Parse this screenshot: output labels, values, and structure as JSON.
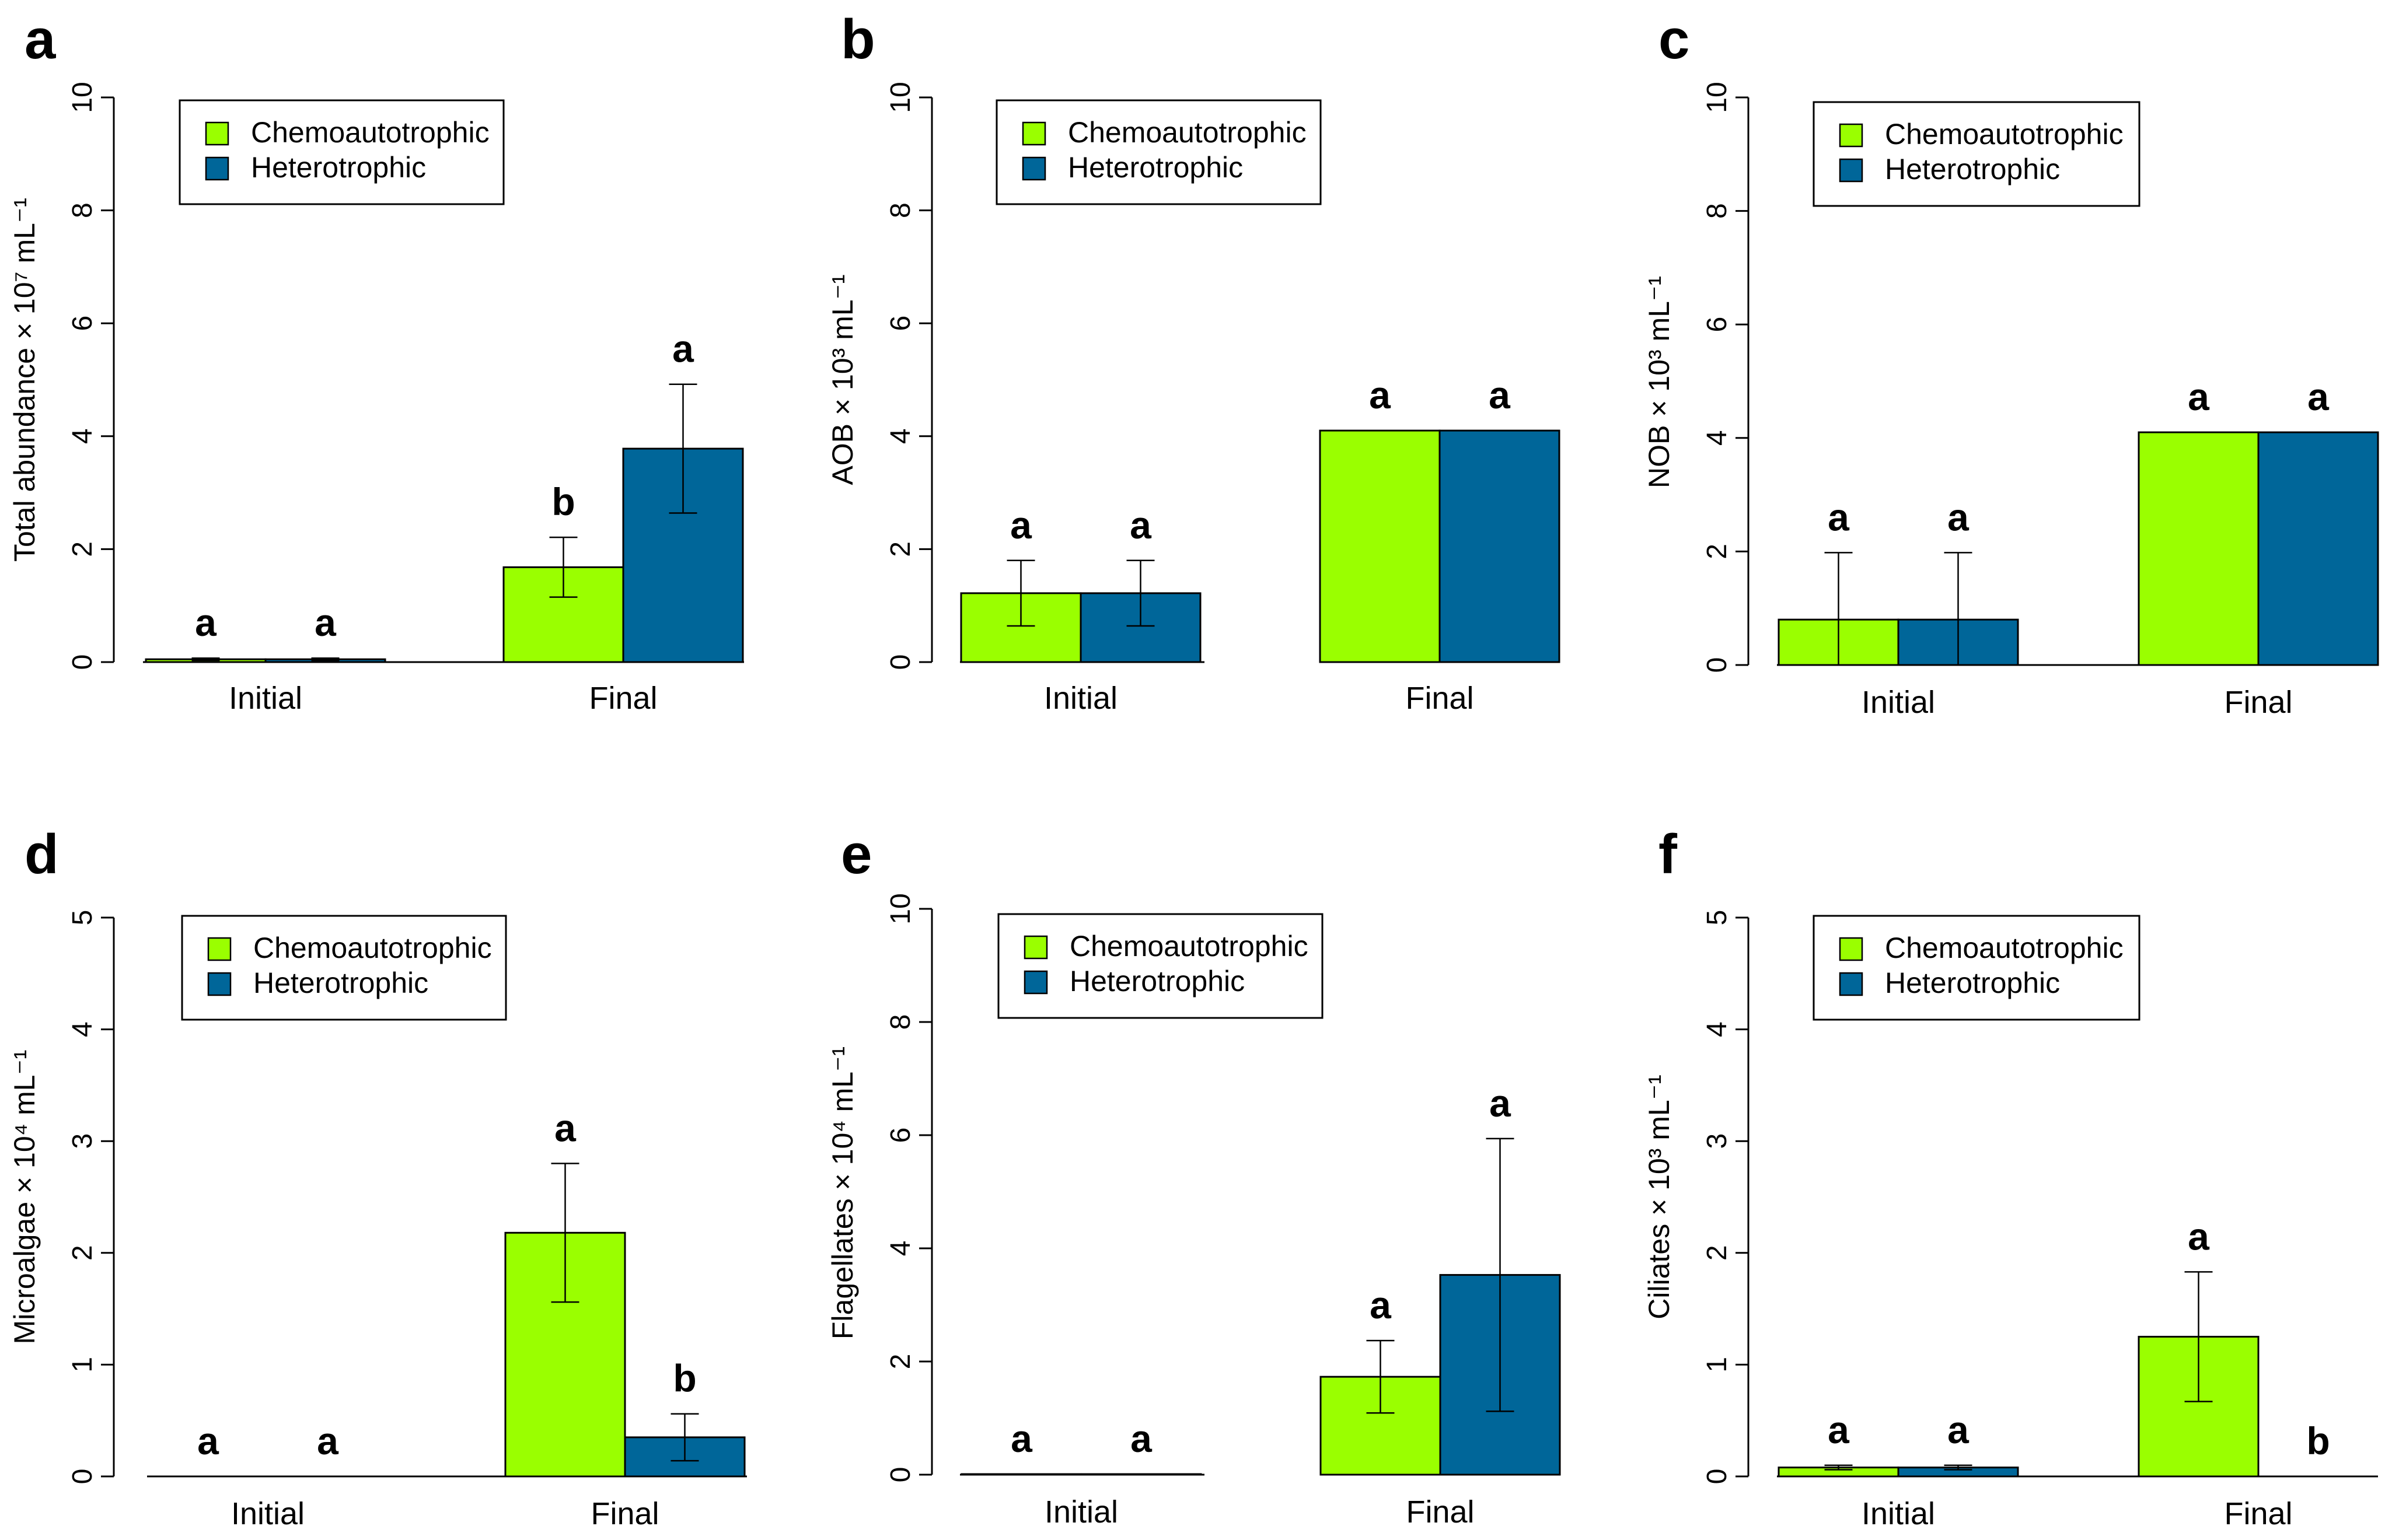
{
  "colors": {
    "chemoautotrophic": "#9aff00",
    "heterotrophic": "#006699"
  },
  "chart_data": [
    {
      "panel": "a",
      "type": "bar",
      "ylabel": "Total abundance × 10⁷ mL⁻¹",
      "ylim": [
        0,
        10
      ],
      "yticks": [
        "0",
        "2",
        "4",
        "6",
        "8",
        "10"
      ],
      "categories": [
        "Initial",
        "Final"
      ],
      "legend": [
        "Chemoautotrophic",
        "Heterotrophic"
      ],
      "series": [
        {
          "name": "Chemoautotrophic",
          "values": [
            0.05,
            1.68
          ],
          "errors": [
            0.02,
            0.53
          ],
          "letters": [
            "a",
            "b"
          ]
        },
        {
          "name": "Heterotrophic",
          "values": [
            0.05,
            3.78
          ],
          "errors": [
            0.02,
            1.14
          ],
          "letters": [
            "a",
            "a"
          ]
        }
      ]
    },
    {
      "panel": "b",
      "type": "bar",
      "ylabel": "AOB × 10³ mL⁻¹",
      "ylim": [
        0,
        10
      ],
      "yticks": [
        "0",
        "2",
        "4",
        "6",
        "8",
        "10"
      ],
      "categories": [
        "Initial",
        "Final"
      ],
      "legend": [
        "Chemoautotrophic",
        "Heterotrophic"
      ],
      "series": [
        {
          "name": "Chemoautotrophic",
          "values": [
            1.22,
            4.1
          ],
          "errors": [
            0.58,
            0
          ],
          "letters": [
            "a",
            "a"
          ]
        },
        {
          "name": "Heterotrophic",
          "values": [
            1.22,
            4.1
          ],
          "errors": [
            0.58,
            0
          ],
          "letters": [
            "a",
            "a"
          ]
        }
      ]
    },
    {
      "panel": "c",
      "type": "bar",
      "ylabel": "NOB × 10³ mL⁻¹",
      "ylim": [
        0,
        10
      ],
      "yticks": [
        "0",
        "2",
        "4",
        "6",
        "8",
        "10"
      ],
      "categories": [
        "Initial",
        "Final"
      ],
      "legend": [
        "Chemoautotrophic",
        "Heterotrophic"
      ],
      "series": [
        {
          "name": "Chemoautotrophic",
          "values": [
            0.8,
            4.1
          ],
          "errors": [
            1.18,
            0
          ],
          "letters": [
            "a",
            "a"
          ]
        },
        {
          "name": "Heterotrophic",
          "values": [
            0.8,
            4.1
          ],
          "errors": [
            1.18,
            0
          ],
          "letters": [
            "a",
            "a"
          ]
        }
      ]
    },
    {
      "panel": "d",
      "type": "bar",
      "ylabel": "Microalgae × 10⁴ mL⁻¹",
      "ylim": [
        0,
        5
      ],
      "yticks": [
        "0",
        "1",
        "2",
        "3",
        "4",
        "5"
      ],
      "categories": [
        "Initial",
        "Final"
      ],
      "legend": [
        "Chemoautotrophic",
        "Heterotrophic"
      ],
      "series": [
        {
          "name": "Chemoautotrophic",
          "values": [
            0,
            2.18
          ],
          "errors": [
            0,
            0.62
          ],
          "letters": [
            "a",
            "a"
          ]
        },
        {
          "name": "Heterotrophic",
          "values": [
            0,
            0.35
          ],
          "errors": [
            0,
            0.21
          ],
          "letters": [
            "a",
            "b"
          ]
        }
      ]
    },
    {
      "panel": "e",
      "type": "bar",
      "ylabel": "Flagellates × 10⁴ mL⁻¹",
      "ylim": [
        0,
        10
      ],
      "yticks": [
        "0",
        "2",
        "4",
        "6",
        "8",
        "10"
      ],
      "categories": [
        "Initial",
        "Final"
      ],
      "legend": [
        "Chemoautotrophic",
        "Heterotrophic"
      ],
      "series": [
        {
          "name": "Chemoautotrophic",
          "values": [
            0.01,
            1.73
          ],
          "errors": [
            0,
            0.64
          ],
          "letters": [
            "a",
            "a"
          ]
        },
        {
          "name": "Heterotrophic",
          "values": [
            0.01,
            3.53
          ],
          "errors": [
            0,
            2.41
          ],
          "letters": [
            "a",
            "a"
          ]
        }
      ]
    },
    {
      "panel": "f",
      "type": "bar",
      "ylabel": "Ciliates × 10³ mL⁻¹",
      "ylim": [
        0,
        5
      ],
      "yticks": [
        "0",
        "1",
        "2",
        "3",
        "4",
        "5"
      ],
      "categories": [
        "Initial",
        "Final"
      ],
      "legend": [
        "Chemoautotrophic",
        "Heterotrophic"
      ],
      "series": [
        {
          "name": "Chemoautotrophic",
          "values": [
            0.08,
            1.25
          ],
          "errors": [
            0.02,
            0.58
          ],
          "letters": [
            "a",
            "a"
          ]
        },
        {
          "name": "Heterotrophic",
          "values": [
            0.08,
            0
          ],
          "errors": [
            0.02,
            0
          ],
          "letters": [
            "a",
            "b"
          ]
        }
      ]
    }
  ]
}
